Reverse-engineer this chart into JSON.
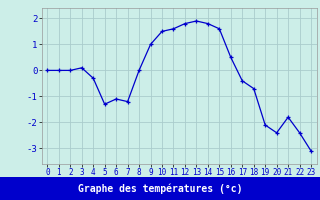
{
  "hours": [
    0,
    1,
    2,
    3,
    4,
    5,
    6,
    7,
    8,
    9,
    10,
    11,
    12,
    13,
    14,
    15,
    16,
    17,
    18,
    19,
    20,
    21,
    22,
    23
  ],
  "temps": [
    0.0,
    0.0,
    0.0,
    0.1,
    -0.3,
    -1.3,
    -1.1,
    -1.2,
    0.0,
    1.0,
    1.5,
    1.6,
    1.8,
    1.9,
    1.8,
    1.6,
    0.5,
    -0.4,
    -0.7,
    -2.1,
    -2.4,
    -1.8,
    -2.4,
    -3.1
  ],
  "bg_color": "#cceee8",
  "grid_color": "#aacccc",
  "line_color": "#0000cc",
  "marker_color": "#0000cc",
  "xlabel": "Graphe des températures (°c)",
  "xlabel_bg": "#0000cc",
  "xlabel_fg": "#ffffff",
  "ylim": [
    -3.6,
    2.4
  ],
  "yticks": [
    -3,
    -2,
    -1,
    0,
    1,
    2
  ],
  "xlim": [
    -0.5,
    23.5
  ],
  "xticks": [
    0,
    1,
    2,
    3,
    4,
    5,
    6,
    7,
    8,
    9,
    10,
    11,
    12,
    13,
    14,
    15,
    16,
    17,
    18,
    19,
    20,
    21,
    22,
    23
  ],
  "tick_fontsize": 5.5,
  "ytick_fontsize": 6.5
}
